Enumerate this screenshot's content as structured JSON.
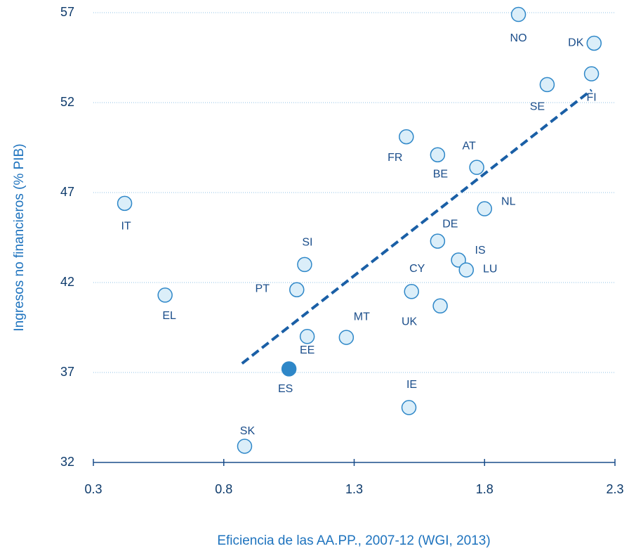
{
  "chart_data": {
    "type": "scatter",
    "xlabel": "Eficiencia de las AA.PP., 2007-12 (WGI, 2013)",
    "ylabel": "Ingresos no financieros  (% PIB)",
    "labels": [
      "NO",
      "DK",
      "FI",
      "SE",
      "FR",
      "BE",
      "AT",
      "NL",
      "IT",
      "DE",
      "IS",
      "LU",
      "SI",
      "PT",
      "CY",
      "EL",
      "UK",
      "EE",
      "MT",
      "ES",
      "IE",
      "SK"
    ],
    "x": [
      1.93,
      2.22,
      2.21,
      2.04,
      1.5,
      1.62,
      1.77,
      1.8,
      0.42,
      1.62,
      1.7,
      1.73,
      1.11,
      1.08,
      1.52,
      0.575,
      1.63,
      1.12,
      1.27,
      1.05,
      1.51,
      0.88
    ],
    "values": [
      56.9,
      55.3,
      53.6,
      53.0,
      50.1,
      49.1,
      48.4,
      46.1,
      46.4,
      44.3,
      43.25,
      42.7,
      43.0,
      41.6,
      41.5,
      41.3,
      40.7,
      39.0,
      38.95,
      37.2,
      35.05,
      32.9
    ],
    "colors": [
      "#dbeef9",
      "#dbeef9",
      "#dbeef9",
      "#dbeef9",
      "#dbeef9",
      "#dbeef9",
      "#dbeef9",
      "#dbeef9",
      "#dbeef9",
      "#dbeef9",
      "#dbeef9",
      "#dbeef9",
      "#dbeef9",
      "#dbeef9",
      "#dbeef9",
      "#dbeef9",
      "#dbeef9",
      "#dbeef9",
      "#dbeef9",
      "#2e87c8",
      "#dbeef9",
      "#dbeef9"
    ],
    "trend": {
      "x": [
        0.87,
        2.21
      ],
      "values": [
        37.5,
        52.7
      ],
      "color": "#1a5fa6"
    },
    "xlim": [
      0.3,
      2.3
    ],
    "xticks": [
      0.3,
      0.8,
      1.3,
      1.8,
      2.3
    ],
    "ylim": [
      32,
      57
    ],
    "yticks": [
      32,
      37,
      42,
      47,
      52,
      57
    ],
    "grid": true
  }
}
